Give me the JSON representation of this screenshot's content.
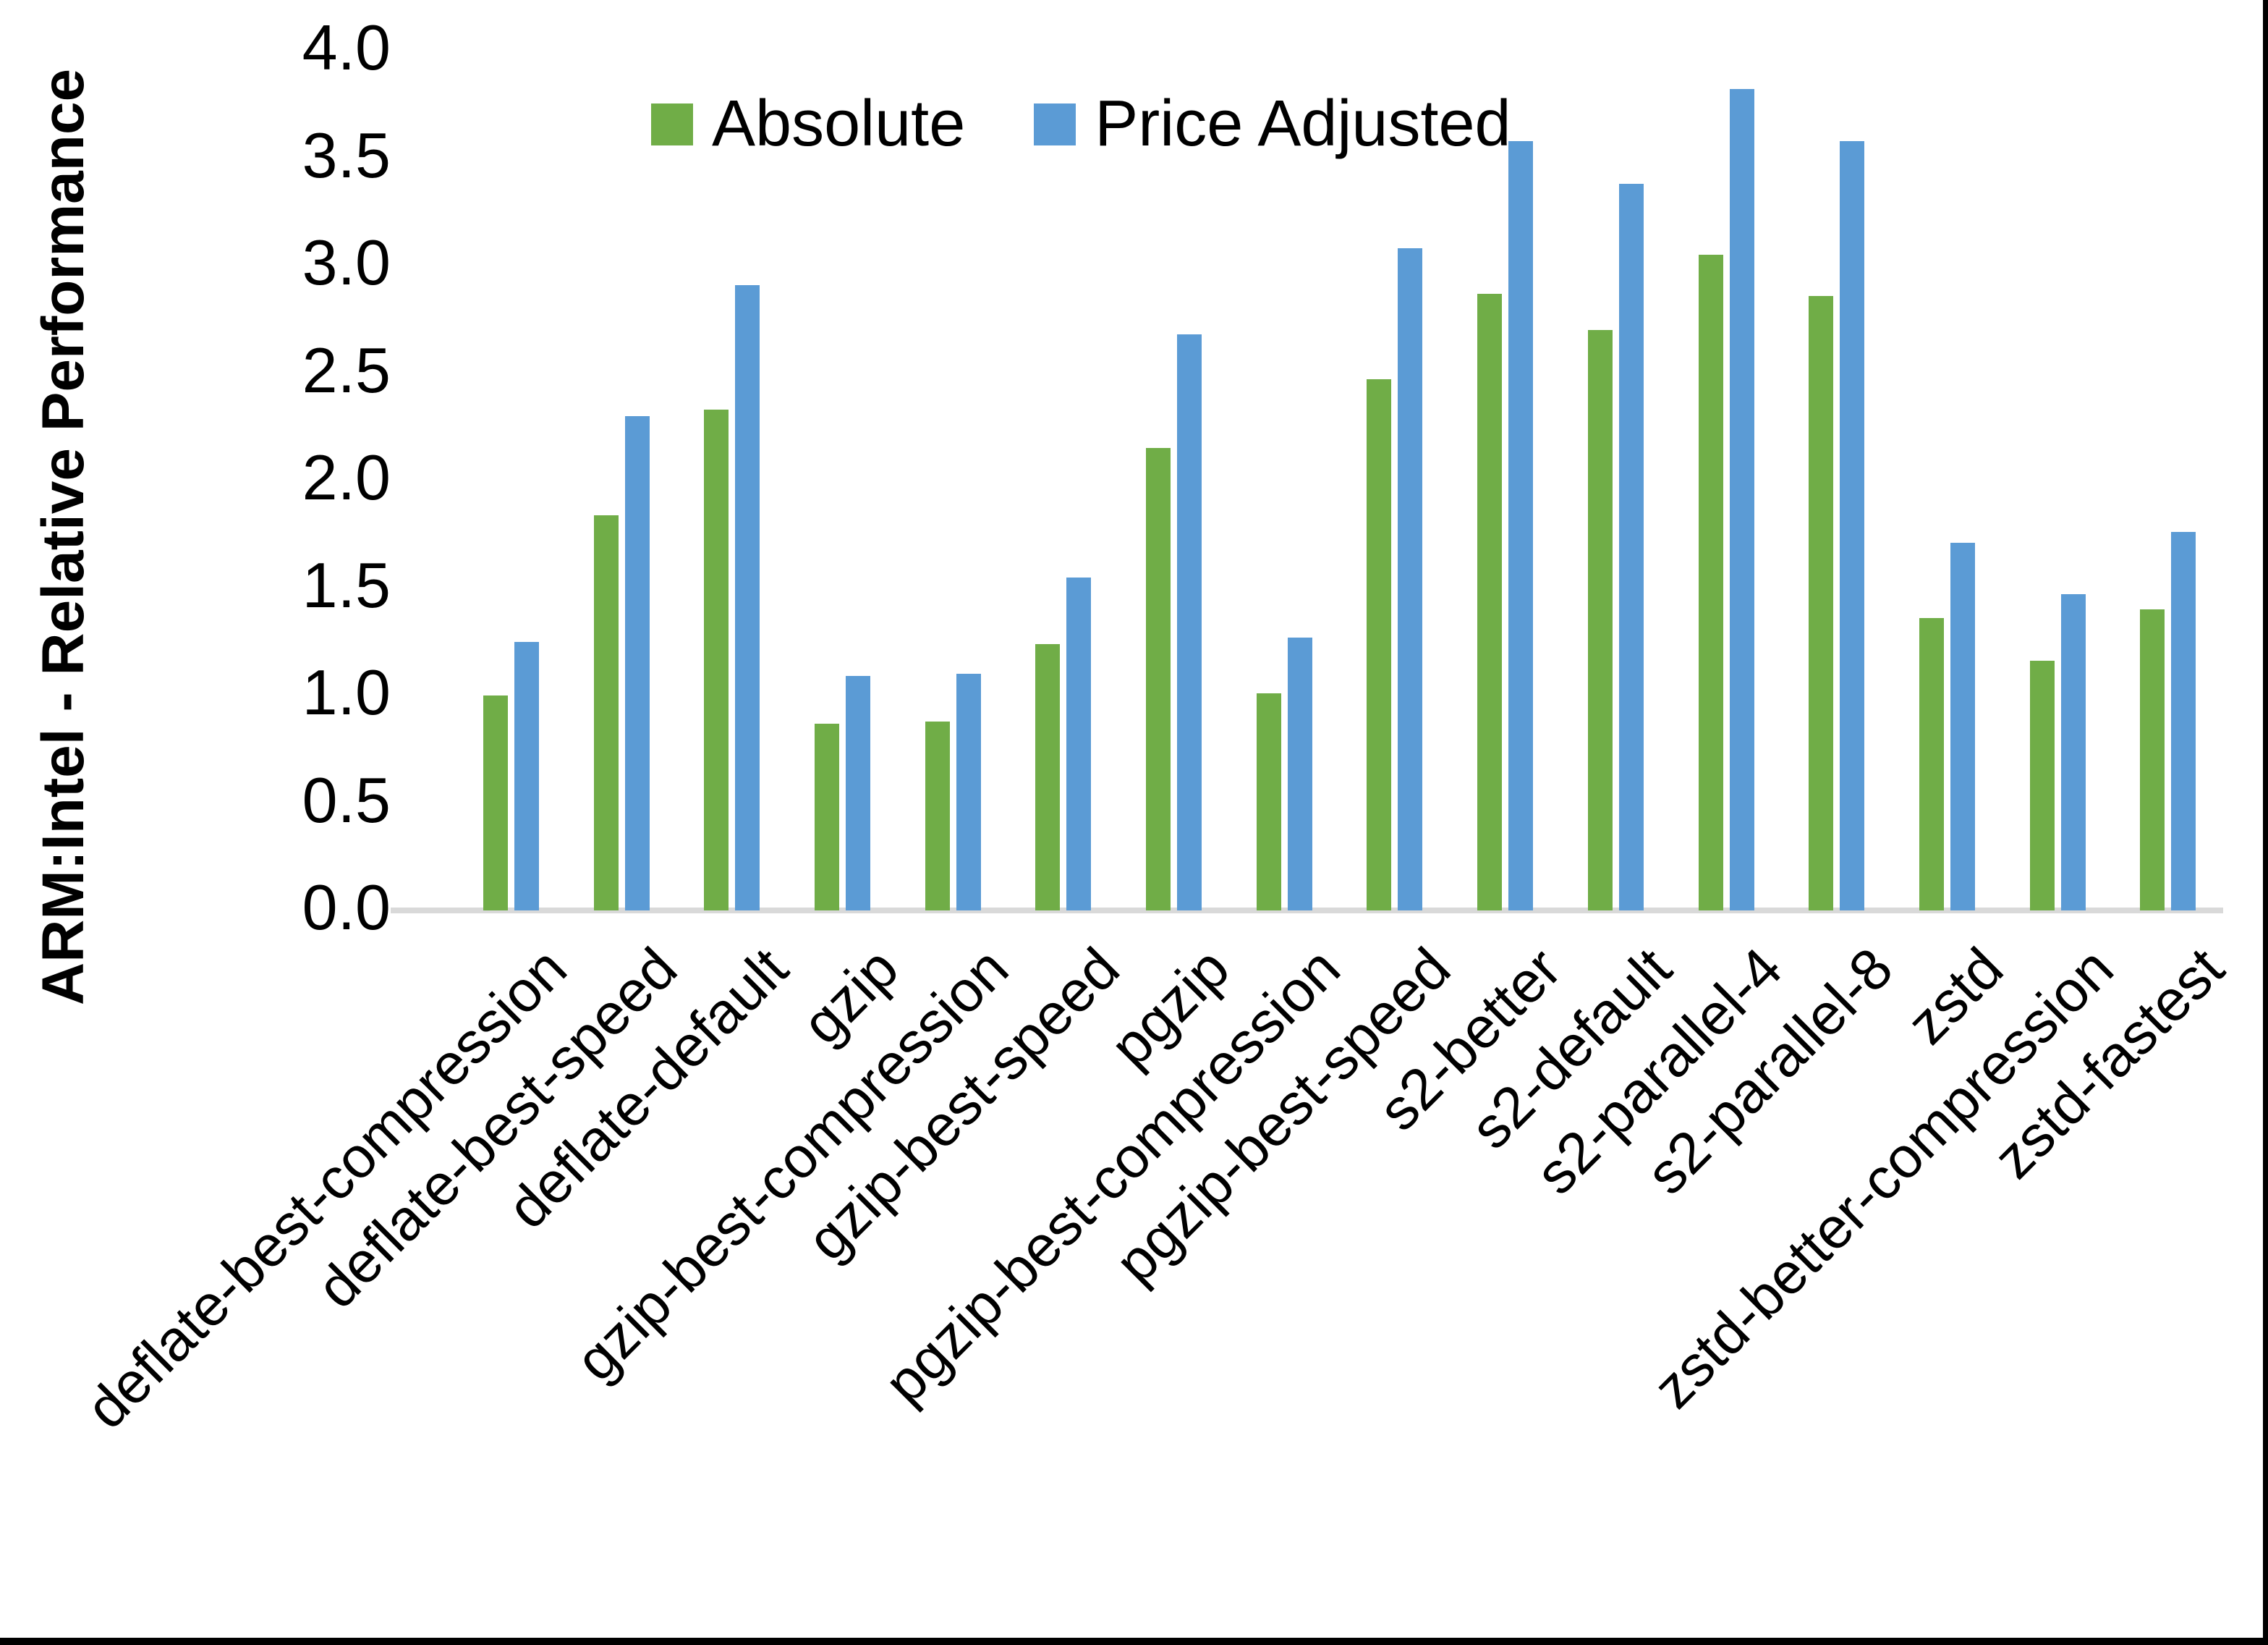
{
  "page": {
    "background": "#ffffff",
    "frame_color": "#000000"
  },
  "chart_data": {
    "type": "bar",
    "title": "",
    "xlabel": "",
    "ylabel": "ARM:Intel - Relative Performance",
    "ylim": [
      0.0,
      4.0
    ],
    "yticks": [
      "0.0",
      "0.5",
      "1.0",
      "1.5",
      "2.0",
      "2.5",
      "3.0",
      "3.5",
      "4.0"
    ],
    "grid": false,
    "legend_position": "top-center",
    "axis_line_color": "#d9d9d9",
    "categories": [
      "deflate-best-compression",
      "deflate-best-speed",
      "deflate-default",
      "gzip",
      "gzip-best-compression",
      "gzip-best-speed",
      "pgzip",
      "pgzip-best-compression",
      "pgzip-best-speed",
      "s2-better",
      "s2-default",
      "s2-parallel-4",
      "s2-parallel-8",
      "zstd",
      "zstd-better-compression",
      "zstd-fastest"
    ],
    "series": [
      {
        "name": "Absolute",
        "color": "#70AD47",
        "values": [
          1.0,
          1.84,
          2.33,
          0.87,
          0.88,
          1.24,
          2.15,
          1.01,
          2.47,
          2.87,
          2.7,
          3.05,
          2.86,
          1.36,
          1.16,
          1.4
        ]
      },
      {
        "name": "Price Adjusted",
        "color": "#5B9BD5",
        "values": [
          1.25,
          2.3,
          2.91,
          1.09,
          1.1,
          1.55,
          2.68,
          1.27,
          3.08,
          3.58,
          3.38,
          3.82,
          3.58,
          1.71,
          1.47,
          1.76
        ]
      }
    ]
  }
}
